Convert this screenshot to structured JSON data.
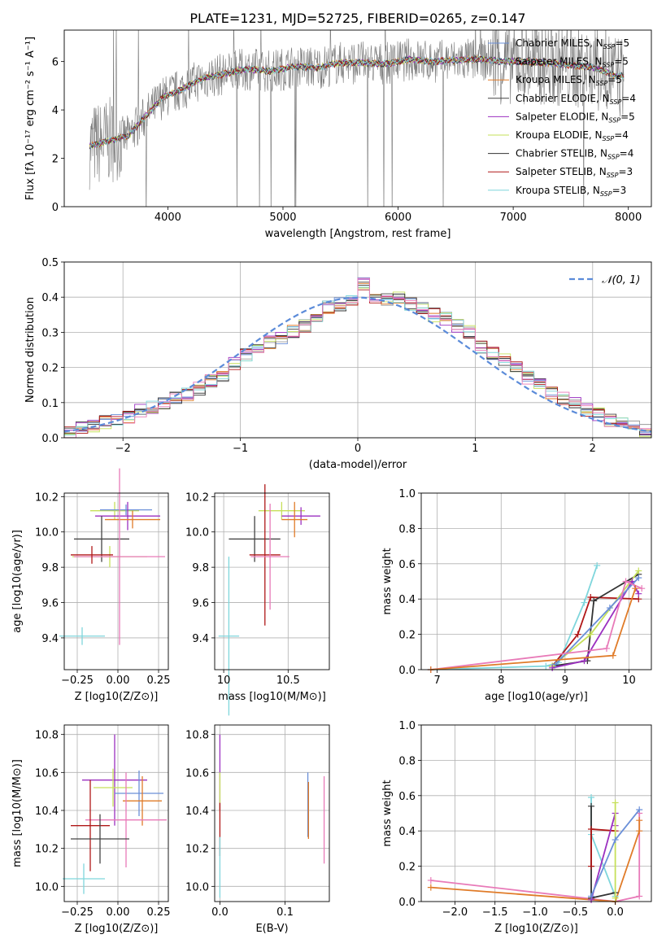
{
  "title": "PLATE=1231, MJD=52725, FIBERID=0265, z=0.147",
  "colors": {
    "Chabrier MILES": "#6a8fd8",
    "Salpeter MILES": "#9a9a9a",
    "Kroupa MILES": "#e07b28",
    "Chabrier ELODIE": "#444444",
    "Salpeter ELODIE": "#9b30c0",
    "Kroupa ELODIE": "#c6e05a",
    "Chabrier STELIB": "#333333",
    "Salpeter STELIB": "#b01818",
    "Kroupa STELIB": "#7fd6dc",
    "normal": "#5b8bd9",
    "pink": "#e87ab8"
  },
  "chart_data": [
    {
      "type": "line",
      "title": "PLATE=1231, MJD=52725, FIBERID=0265, z=0.147",
      "xlabel": "wavelength [Angstrom, rest frame]",
      "ylabel": "Flux [fλ 10⁻¹⁷ erg cm⁻² s⁻¹ A⁻¹]",
      "xlim": [
        3100,
        8200
      ],
      "ylim": [
        0,
        7.3
      ],
      "xticks": [
        4000,
        5000,
        6000,
        7000,
        8000
      ],
      "yticks": [
        0,
        2,
        4,
        6
      ],
      "grid": false,
      "legend_position": "top-right",
      "series": [
        {
          "name": "Chabrier MILES, N_SSP=5",
          "color_key": "Chabrier MILES"
        },
        {
          "name": "Salpeter MILES, N_SSP=5",
          "color_key": "Salpeter MILES"
        },
        {
          "name": "Kroupa MILES, N_SSP=5",
          "color_key": "Kroupa MILES"
        },
        {
          "name": "Chabrier ELODIE, N_SSP=4",
          "color_key": "Chabrier ELODIE"
        },
        {
          "name": "Salpeter ELODIE, N_SSP=5",
          "color_key": "Salpeter ELODIE"
        },
        {
          "name": "Kroupa ELODIE, N_SSP=4",
          "color_key": "Kroupa ELODIE"
        },
        {
          "name": "Chabrier STELIB, N_SSP=4",
          "color_key": "Chabrier STELIB"
        },
        {
          "name": "Salpeter STELIB, N_SSP=3",
          "color_key": "Salpeter STELIB"
        },
        {
          "name": "Kroupa STELIB, N_SSP=3",
          "color_key": "Kroupa STELIB"
        }
      ],
      "continuum_x": [
        3320,
        3500,
        3650,
        3800,
        3950,
        4100,
        4300,
        4500,
        4700,
        4900,
        5100,
        5300,
        5500,
        5700,
        5900,
        6100,
        6300,
        6500,
        6700,
        6900,
        7100,
        7300,
        7500,
        7700,
        7900
      ],
      "continuum_y": [
        2.5,
        2.75,
        2.9,
        3.7,
        4.5,
        4.8,
        5.3,
        5.5,
        5.7,
        5.6,
        5.8,
        5.75,
        5.95,
        5.95,
        5.9,
        6.1,
        6.0,
        6.05,
        6.1,
        6.0,
        6.0,
        5.95,
        5.85,
        5.75,
        5.4
      ]
    },
    {
      "type": "line",
      "xlabel": "(data-model)/error",
      "ylabel": "Normed distribution",
      "xlim": [
        -2.5,
        2.5
      ],
      "ylim": [
        0,
        0.5
      ],
      "xticks": [
        -2,
        -1,
        0,
        1,
        2
      ],
      "yticks": [
        0.0,
        0.1,
        0.2,
        0.3,
        0.4,
        0.5
      ],
      "grid": true,
      "legend_position": "top-right",
      "legend": "𝒩(0, 1)",
      "bins": [
        -2.5,
        -2.4,
        -2.3,
        -2.2,
        -2.1,
        -2.0,
        -1.9,
        -1.8,
        -1.7,
        -1.6,
        -1.5,
        -1.4,
        -1.3,
        -1.2,
        -1.1,
        -1.0,
        -0.9,
        -0.8,
        -0.7,
        -0.6,
        -0.5,
        -0.4,
        -0.3,
        -0.2,
        -0.1,
        0.0,
        0.1,
        0.2,
        0.3,
        0.4,
        0.5,
        0.6,
        0.7,
        0.8,
        0.9,
        1.0,
        1.1,
        1.2,
        1.3,
        1.4,
        1.5,
        1.6,
        1.7,
        1.8,
        1.9,
        2.0,
        2.1,
        2.2,
        2.3,
        2.4
      ],
      "histogram_counts": [
        0.018,
        0.028,
        0.032,
        0.045,
        0.05,
        0.058,
        0.075,
        0.085,
        0.1,
        0.112,
        0.125,
        0.14,
        0.16,
        0.18,
        0.21,
        0.235,
        0.25,
        0.27,
        0.28,
        0.3,
        0.32,
        0.35,
        0.37,
        0.38,
        0.39,
        0.44,
        0.4,
        0.39,
        0.4,
        0.38,
        0.37,
        0.35,
        0.34,
        0.32,
        0.3,
        0.26,
        0.24,
        0.22,
        0.2,
        0.17,
        0.15,
        0.13,
        0.11,
        0.095,
        0.08,
        0.065,
        0.05,
        0.04,
        0.03,
        0.022
      ],
      "curve": "normal(0,1)"
    },
    {
      "type": "scatter",
      "panel": "age vs Z",
      "xlabel": "Z [log10(Z/Z⊙)]",
      "ylabel": "age  [log10(age/yr)]",
      "xlim": [
        -0.33,
        0.31
      ],
      "ylim": [
        9.22,
        10.22
      ],
      "xticks": [
        -0.25,
        0.0,
        0.25
      ],
      "xticklabels": [
        "−0.25",
        "0.00",
        "0.25"
      ],
      "yticks": [
        9.4,
        9.6,
        9.8,
        10.0,
        10.2
      ],
      "grid": true,
      "errorbars": [
        {
          "x": -0.02,
          "y": 10.12,
          "xe": 0.15,
          "ye": 0.05,
          "color_key": "Kroupa ELODIE"
        },
        {
          "x": 0.05,
          "y": 10.125,
          "xe": 0.16,
          "ye": 0.03,
          "color_key": "Chabrier MILES"
        },
        {
          "x": 0.06,
          "y": 10.09,
          "xe": 0.2,
          "ye": 0.08,
          "color_key": "Salpeter ELODIE"
        },
        {
          "x": 0.09,
          "y": 10.07,
          "xe": 0.17,
          "ye": 0.05,
          "color_key": "Kroupa MILES"
        },
        {
          "x": -0.1,
          "y": 9.96,
          "xe": 0.17,
          "ye": 0.13,
          "color_key": "Chabrier ELODIE"
        },
        {
          "x": -0.05,
          "y": 9.86,
          "xe": 0.23,
          "ye": 0.06,
          "color_key": "Kroupa ELODIE"
        },
        {
          "x": 0.01,
          "y": 9.86,
          "xe": 0.28,
          "ye": 0.5,
          "color_key": "pink"
        },
        {
          "x": -0.16,
          "y": 9.87,
          "xe": 0.13,
          "ye": 0.05,
          "color_key": "Salpeter STELIB"
        },
        {
          "x": -0.22,
          "y": 9.41,
          "xe": 0.14,
          "ye": 0.05,
          "color_key": "Kroupa STELIB"
        }
      ]
    },
    {
      "type": "scatter",
      "panel": "age vs mass",
      "xlabel": "mass [log10(M/M⊙)]",
      "xlim": [
        9.93,
        10.82
      ],
      "ylim": [
        9.22,
        10.22
      ],
      "xticks": [
        10.0,
        10.5
      ],
      "yticks": [
        9.4,
        9.6,
        9.8,
        10.0,
        10.2
      ],
      "grid": true,
      "errorbars": [
        {
          "x": 10.45,
          "y": 10.12,
          "xe": 0.18,
          "ye": 0.05,
          "color_key": "Kroupa ELODIE"
        },
        {
          "x": 10.6,
          "y": 10.09,
          "xe": 0.15,
          "ye": 0.05,
          "color_key": "Salpeter ELODIE"
        },
        {
          "x": 10.55,
          "y": 10.07,
          "xe": 0.1,
          "ye": 0.1,
          "color_key": "Kroupa MILES"
        },
        {
          "x": 10.24,
          "y": 9.96,
          "xe": 0.2,
          "ye": 0.13,
          "color_key": "Chabrier ELODIE"
        },
        {
          "x": 10.32,
          "y": 9.87,
          "xe": 0.12,
          "ye": 0.4,
          "color_key": "Salpeter STELIB"
        },
        {
          "x": 10.36,
          "y": 9.86,
          "xe": 0.15,
          "ye": 0.3,
          "color_key": "pink"
        },
        {
          "x": 10.04,
          "y": 9.41,
          "xe": 0.08,
          "ye": 0.45,
          "color_key": "Kroupa STELIB"
        }
      ]
    },
    {
      "type": "line",
      "panel": "mass weight vs age",
      "xlabel": "age  [log10(age/yr)]",
      "ylabel": "mass weight",
      "xlim": [
        6.75,
        10.35
      ],
      "ylim": [
        0,
        1.0
      ],
      "xticks": [
        7,
        8,
        9,
        10
      ],
      "yticks": [
        0.0,
        0.2,
        0.4,
        0.6,
        0.8,
        1.0
      ],
      "grid": true,
      "series": [
        {
          "color_key": "Kroupa STELIB",
          "x": [
            6.9,
            8.7,
            8.9,
            9.3,
            9.5
          ],
          "y": [
            0.0,
            0.02,
            0.04,
            0.38,
            0.59
          ]
        },
        {
          "color_key": "Salpeter STELIB",
          "x": [
            8.8,
            9.2,
            9.4,
            10.15
          ],
          "y": [
            0.02,
            0.2,
            0.41,
            0.4
          ]
        },
        {
          "color_key": "Chabrier STELIB",
          "x": [
            8.8,
            9.35,
            9.45,
            10.15
          ],
          "y": [
            0.02,
            0.05,
            0.39,
            0.54
          ]
        },
        {
          "color_key": "Kroupa ELODIE",
          "x": [
            8.8,
            9.4,
            10.15
          ],
          "y": [
            0.02,
            0.2,
            0.56
          ]
        },
        {
          "color_key": "Salpeter ELODIE",
          "x": [
            8.8,
            9.3,
            10.05,
            10.15
          ],
          "y": [
            0.01,
            0.05,
            0.5,
            0.43
          ]
        },
        {
          "color_key": "Chabrier MILES",
          "x": [
            8.85,
            9.7,
            10.15
          ],
          "y": [
            0.03,
            0.35,
            0.52
          ]
        },
        {
          "color_key": "pink",
          "x": [
            6.9,
            9.65,
            9.95,
            10.2
          ],
          "y": [
            0.0,
            0.12,
            0.5,
            0.46
          ]
        },
        {
          "color_key": "Kroupa MILES",
          "x": [
            6.9,
            9.75,
            10.1
          ],
          "y": [
            0.0,
            0.08,
            0.46
          ]
        }
      ]
    },
    {
      "type": "scatter",
      "panel": "mass vs Z",
      "xlabel": "Z [log10(Z/Z⊙)]",
      "ylabel": "mass [log10(M/M⊙)]",
      "xlim": [
        -0.33,
        0.31
      ],
      "ylim": [
        9.92,
        10.85
      ],
      "xticks": [
        -0.25,
        0.0,
        0.25
      ],
      "xticklabels": [
        "−0.25",
        "0.00",
        "0.25"
      ],
      "yticks": [
        10.0,
        10.2,
        10.4,
        10.6,
        10.8
      ],
      "grid": true,
      "errorbars": [
        {
          "x": -0.02,
          "y": 10.56,
          "xe": 0.2,
          "ye": 0.24,
          "color_key": "Salpeter ELODIE"
        },
        {
          "x": -0.03,
          "y": 10.52,
          "xe": 0.12,
          "ye": 0.1,
          "color_key": "Kroupa ELODIE"
        },
        {
          "x": 0.13,
          "y": 10.49,
          "xe": 0.15,
          "ye": 0.12,
          "color_key": "Chabrier MILES"
        },
        {
          "x": 0.15,
          "y": 10.45,
          "xe": 0.12,
          "ye": 0.13,
          "color_key": "Kroupa MILES"
        },
        {
          "x": 0.05,
          "y": 10.35,
          "xe": 0.25,
          "ye": 0.25,
          "color_key": "pink"
        },
        {
          "x": -0.17,
          "y": 10.32,
          "xe": 0.12,
          "ye": 0.24,
          "color_key": "Salpeter STELIB"
        },
        {
          "x": -0.11,
          "y": 10.25,
          "xe": 0.18,
          "ye": 0.13,
          "color_key": "Chabrier ELODIE"
        },
        {
          "x": -0.21,
          "y": 10.04,
          "xe": 0.13,
          "ye": 0.08,
          "color_key": "Kroupa STELIB"
        }
      ]
    },
    {
      "type": "scatter",
      "panel": "mass vs E(B-V)",
      "xlabel": "E(B-V)",
      "xlim": [
        -0.008,
        0.168
      ],
      "ylim": [
        9.92,
        10.85
      ],
      "xticks": [
        0.0,
        0.1
      ],
      "xticklabels": [
        "0.0",
        "0.1"
      ],
      "yticks": [
        10.0,
        10.2,
        10.4,
        10.6,
        10.8
      ],
      "grid": true,
      "errorbars": [
        {
          "x": 0.0,
          "y": 10.6,
          "ye": 0.2,
          "color_key": "Salpeter ELODIE"
        },
        {
          "x": 0.0,
          "y": 10.5,
          "ye": 0.1,
          "color_key": "Kroupa ELODIE"
        },
        {
          "x": 0.0,
          "y": 10.3,
          "ye": 0.14,
          "color_key": "Salpeter STELIB"
        },
        {
          "x": 0.0,
          "y": 10.1,
          "ye": 0.16,
          "color_key": "Kroupa STELIB"
        },
        {
          "x": 0.135,
          "y": 10.43,
          "ye": 0.17,
          "color_key": "Chabrier MILES"
        },
        {
          "x": 0.136,
          "y": 10.4,
          "ye": 0.15,
          "color_key": "Kroupa MILES"
        },
        {
          "x": 0.16,
          "y": 10.35,
          "ye": 0.23,
          "color_key": "pink"
        }
      ]
    },
    {
      "type": "line",
      "panel": "mass weight vs Z",
      "xlabel": "Z [log10(Z/Z⊙)]",
      "ylabel": "mass weight",
      "xlim": [
        -2.42,
        0.45
      ],
      "ylim": [
        0,
        1.0
      ],
      "xticks": [
        -2.0,
        -1.5,
        -1.0,
        -0.5,
        0.0
      ],
      "xticklabels": [
        "−2.0",
        "−1.5",
        "−1.0",
        "−0.5",
        "0.0"
      ],
      "yticks": [
        0.0,
        0.2,
        0.4,
        0.6,
        0.8,
        1.0
      ],
      "grid": true,
      "series": [
        {
          "color_key": "pink",
          "x": [
            -2.3,
            0.0,
            0.3,
            0.3
          ],
          "y": [
            0.12,
            0.0,
            0.03,
            0.5
          ]
        },
        {
          "color_key": "Kroupa MILES",
          "x": [
            -2.3,
            0.0,
            0.3,
            0.3
          ],
          "y": [
            0.08,
            0.0,
            0.4,
            0.46
          ]
        },
        {
          "color_key": "Kroupa STELIB",
          "x": [
            -0.3,
            -0.3,
            0.0
          ],
          "y": [
            0.59,
            0.38,
            0.03
          ]
        },
        {
          "color_key": "Chabrier STELIB",
          "x": [
            -0.3,
            -0.3,
            0.0
          ],
          "y": [
            0.54,
            0.02,
            0.05
          ]
        },
        {
          "color_key": "Salpeter STELIB",
          "x": [
            -0.3,
            -0.3,
            0.0
          ],
          "y": [
            0.2,
            0.41,
            0.4
          ]
        },
        {
          "color_key": "Salpeter ELODIE",
          "x": [
            -0.3,
            0.0,
            0.0
          ],
          "y": [
            0.01,
            0.5,
            0.43
          ]
        },
        {
          "color_key": "Kroupa ELODIE",
          "x": [
            0.0,
            0.0
          ],
          "y": [
            0.02,
            0.56
          ]
        },
        {
          "color_key": "Chabrier MILES",
          "x": [
            -0.3,
            0.0,
            0.3
          ],
          "y": [
            0.03,
            0.35,
            0.52
          ]
        }
      ]
    }
  ]
}
